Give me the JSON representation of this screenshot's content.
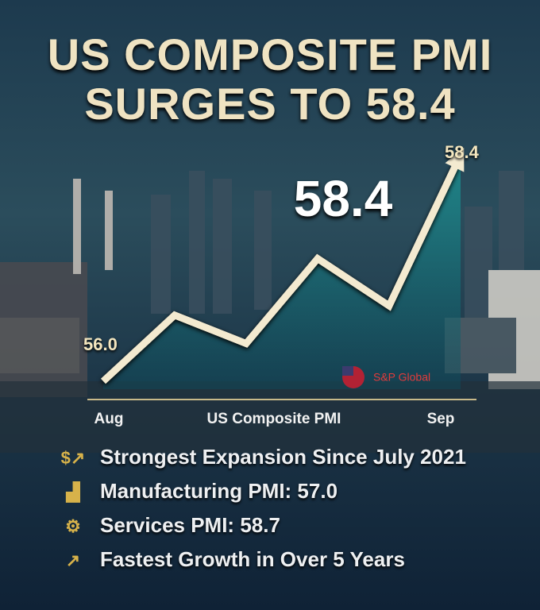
{
  "chart_data": {
    "type": "line",
    "title": "US COMPOSITE PMI SURGES TO 58.4",
    "highlight": "58.4",
    "categories": [
      "Aug",
      null,
      null,
      null,
      null,
      "Sep"
    ],
    "x_label": "US Composite PMI",
    "values": [
      56.0,
      56.7,
      56.4,
      57.3,
      56.8,
      58.4
    ],
    "value_labels": [
      "56.0",
      null,
      null,
      null,
      null,
      "58.4"
    ],
    "color": "#f3ead0",
    "source": "S&P Global",
    "bullets": [
      "Strongest Expansion Since July 2021",
      "Manufacturing PMI: 57.0",
      "Services PMI: 58.7",
      "Fastest Growth in Over 5 Years"
    ]
  }
}
